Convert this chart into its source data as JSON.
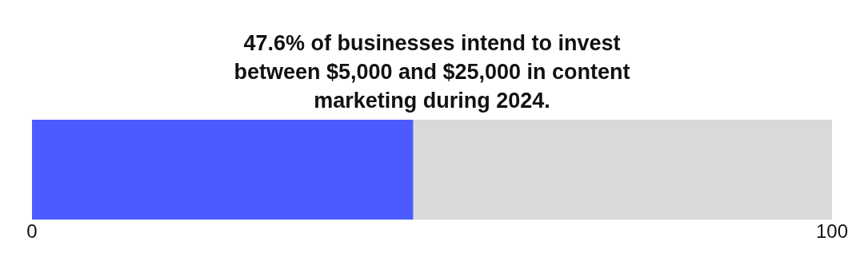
{
  "chart_data": {
    "type": "bar",
    "title": "47.6% of businesses intend to invest between $5,000 and $25,000 in content marketing during 2024.",
    "orientation": "horizontal",
    "stacked": true,
    "categories": [
      null
    ],
    "series": [
      {
        "color": "#4a5cff",
        "values": [
          47.6
        ]
      },
      {
        "color": "#d9d9d9",
        "values": [
          52.4
        ]
      }
    ],
    "xlim": [
      0,
      100
    ],
    "xticks": [
      0,
      100
    ],
    "grid": false,
    "legend": false,
    "tick_labels": "x"
  }
}
